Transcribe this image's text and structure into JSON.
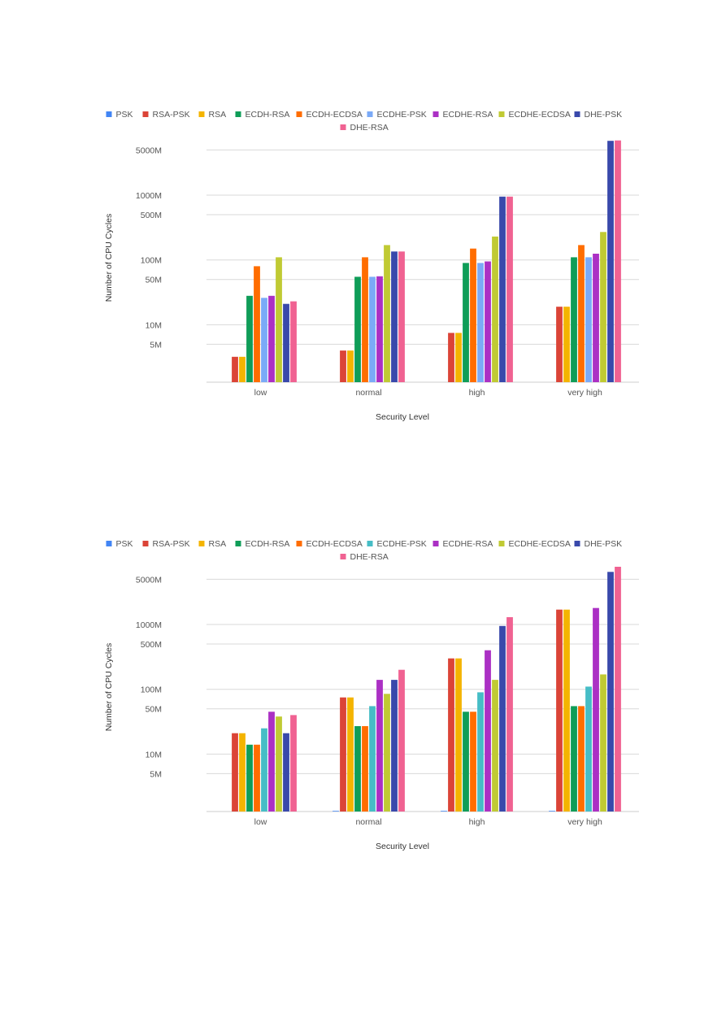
{
  "series_colors": {
    "PSK": "#4285f4",
    "RSA-PSK": "#db4437",
    "RSA": "#f4b400",
    "ECDH-RSA": "#0f9d58",
    "ECDH-ECDSA": "#ff6d00",
    "ECDHE-PSK": "#7baaf7",
    "ECDHE-RSA": "#ab30c4",
    "ECDHE-ECDSA": "#c0ca33",
    "DHE-PSK": "#3949ab",
    "DHE-RSA": "#f06292"
  },
  "chart_data": [
    {
      "type": "bar",
      "xlabel": "Security Level",
      "ylabel": "Number of CPU Cycles",
      "yscale": "log",
      "ylim": [
        1300000,
        9000000000
      ],
      "yticks": [
        5000000,
        10000000,
        50000000,
        100000000,
        500000000,
        1000000000,
        5000000000
      ],
      "ytick_labels": [
        "5M",
        "10M",
        "50M",
        "100M",
        "500M",
        "1000M",
        "5000M"
      ],
      "legend_position": "top",
      "categories": [
        "low",
        "normal",
        "high",
        "very high"
      ],
      "series": [
        {
          "name": "PSK",
          "values": [
            null,
            null,
            null,
            null
          ]
        },
        {
          "name": "RSA-PSK",
          "values": [
            3200000,
            4000000,
            7500000,
            19000000
          ]
        },
        {
          "name": "RSA",
          "values": [
            3200000,
            4000000,
            7500000,
            19000000
          ]
        },
        {
          "name": "ECDH-RSA",
          "values": [
            28000000,
            55000000,
            90000000,
            110000000
          ]
        },
        {
          "name": "ECDH-ECDSA",
          "values": [
            80000000,
            110000000,
            150000000,
            170000000
          ]
        },
        {
          "name": "ECDHE-PSK",
          "values": [
            26000000,
            55000000,
            90000000,
            110000000
          ]
        },
        {
          "name": "ECDHE-RSA",
          "values": [
            28000000,
            56000000,
            95000000,
            125000000
          ]
        },
        {
          "name": "ECDHE-ECDSA",
          "values": [
            110000000,
            170000000,
            230000000,
            270000000
          ]
        },
        {
          "name": "DHE-PSK",
          "values": [
            21000000,
            135000000,
            950000000,
            6900000000
          ]
        },
        {
          "name": "DHE-RSA",
          "values": [
            23000000,
            135000000,
            950000000,
            7000000000
          ]
        }
      ]
    },
    {
      "type": "bar",
      "xlabel": "Security Level",
      "ylabel": "Number of CPU Cycles",
      "yscale": "log",
      "ylim": [
        1300000,
        9000000000
      ],
      "yticks": [
        5000000,
        10000000,
        50000000,
        100000000,
        500000000,
        1000000000,
        5000000000
      ],
      "ytick_labels": [
        "5M",
        "10M",
        "50M",
        "100M",
        "500M",
        "1000M",
        "5000M"
      ],
      "legend_position": "top",
      "categories": [
        "low",
        "normal",
        "high",
        "very high"
      ],
      "series": [
        {
          "name": "PSK",
          "values": [
            null,
            1300000,
            1300000,
            1300000
          ]
        },
        {
          "name": "RSA-PSK",
          "values": [
            21000000,
            75000000,
            300000000,
            1700000000
          ]
        },
        {
          "name": "RSA",
          "values": [
            21000000,
            75000000,
            300000000,
            1700000000
          ]
        },
        {
          "name": "ECDH-RSA",
          "values": [
            14000000,
            27000000,
            45000000,
            55000000
          ]
        },
        {
          "name": "ECDH-ECDSA",
          "values": [
            14000000,
            27000000,
            45000000,
            55000000
          ]
        },
        {
          "name": "ECDHE-PSK",
          "values": [
            25000000,
            55000000,
            90000000,
            110000000
          ]
        },
        {
          "name": "ECDHE-RSA",
          "values": [
            45000000,
            140000000,
            400000000,
            1800000000
          ]
        },
        {
          "name": "ECDHE-ECDSA",
          "values": [
            38000000,
            85000000,
            140000000,
            170000000
          ]
        },
        {
          "name": "DHE-PSK",
          "values": [
            21000000,
            140000000,
            950000000,
            6500000000
          ]
        },
        {
          "name": "DHE-RSA",
          "values": [
            40000000,
            200000000,
            1300000000,
            7800000000
          ]
        }
      ]
    }
  ],
  "chart_colors_override": [
    {},
    {
      "ECDHE-PSK": "#46bdc6"
    }
  ]
}
